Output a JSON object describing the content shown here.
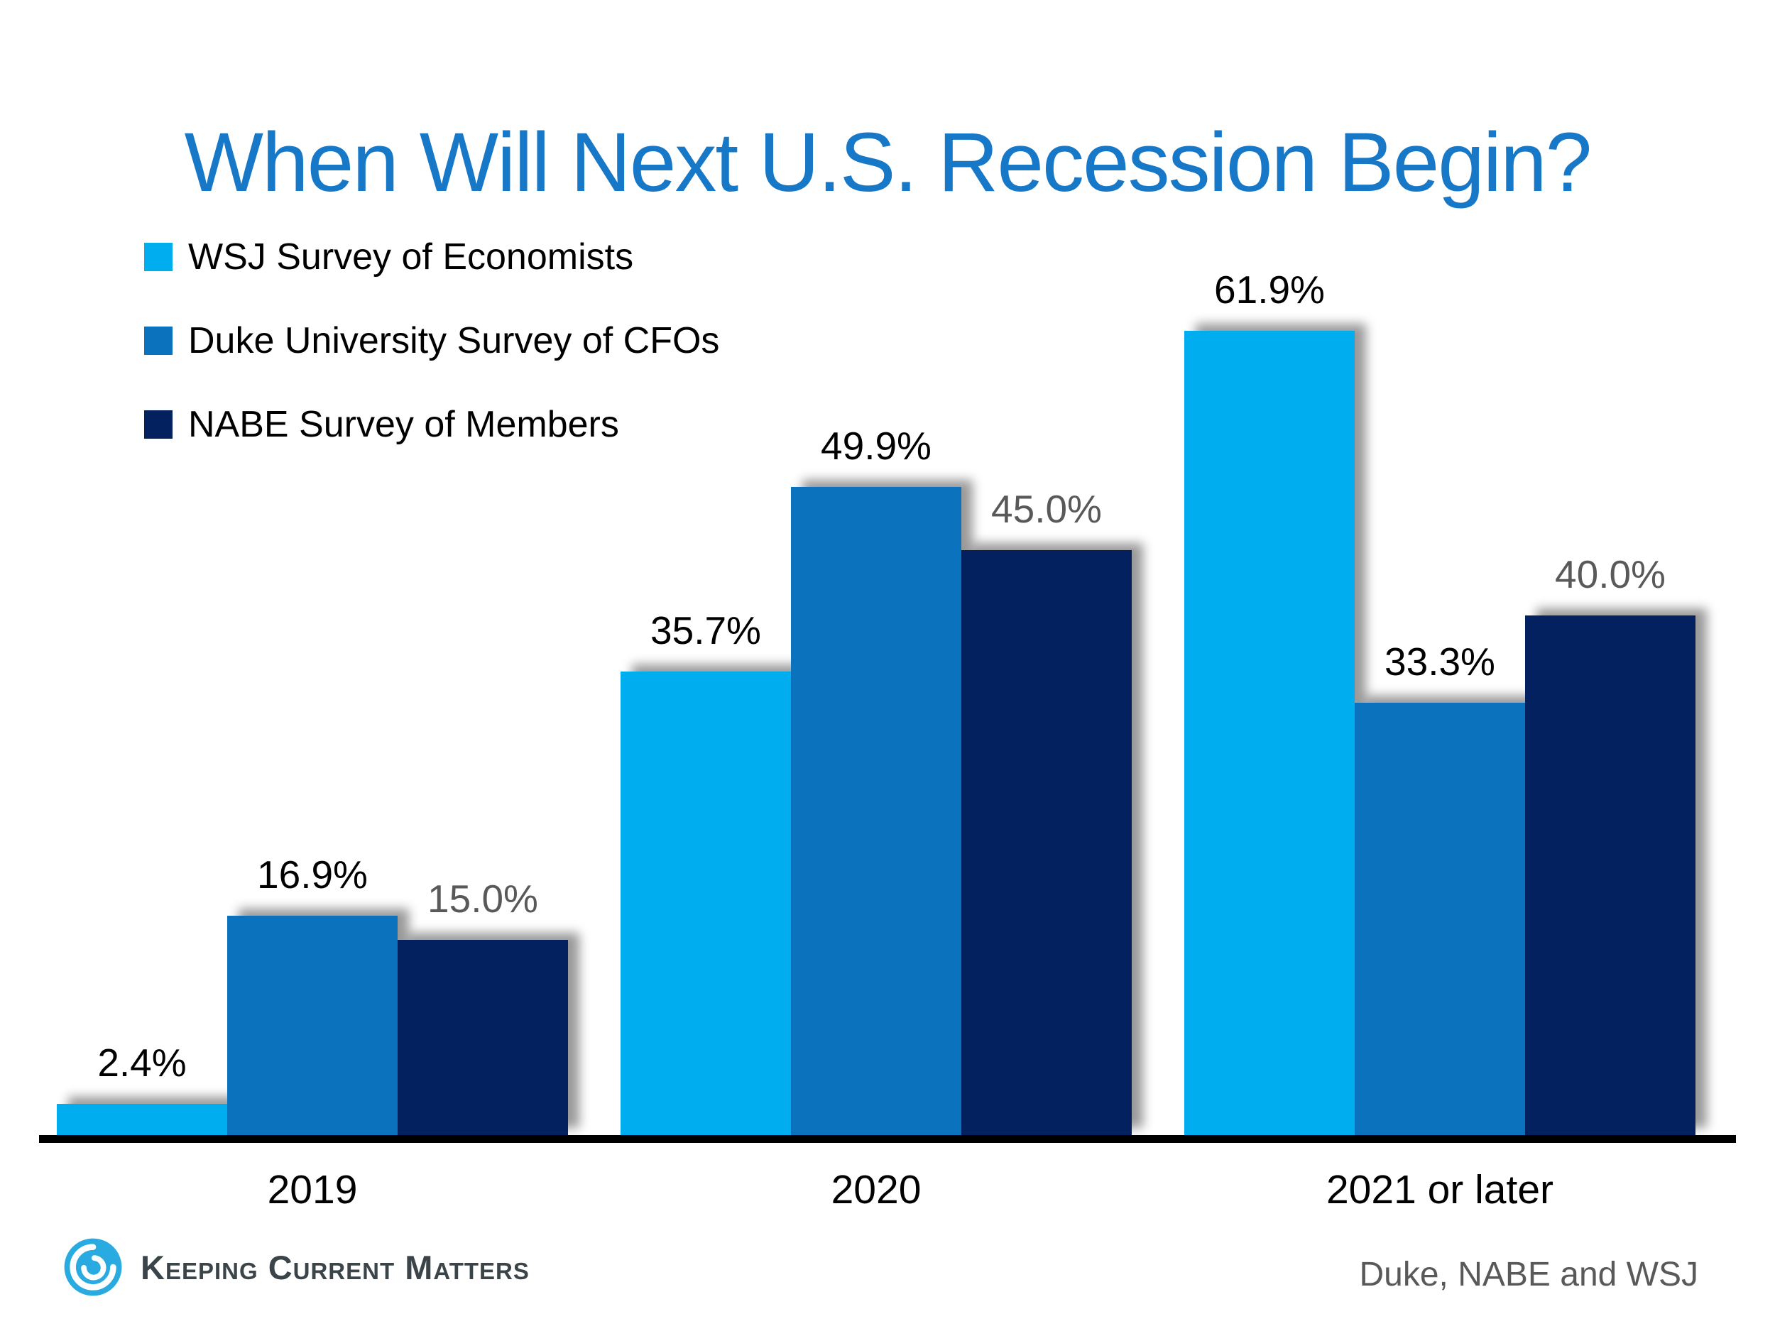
{
  "chart_data": {
    "type": "bar",
    "title": "When Will Next U.S. Recession Begin?",
    "title_color": "#1878C8",
    "categories": [
      "2019",
      "2020",
      "2021 or later"
    ],
    "series": [
      {
        "name": "WSJ Survey of Economists",
        "color": "#00AEEF",
        "label_color": "#000000",
        "values": [
          2.4,
          35.7,
          61.9
        ]
      },
      {
        "name": "Duke University Survey of CFOs",
        "color": "#0B73BD",
        "label_color": "#000000",
        "values": [
          16.9,
          49.9,
          33.3
        ]
      },
      {
        "name": "NABE Survey of Members",
        "color": "#02215E",
        "label_color": "#595959",
        "values": [
          15.0,
          45.0,
          40.0
        ]
      }
    ],
    "value_label_format": "percent-one-decimal",
    "ylim": [
      0,
      70
    ],
    "grid": "off",
    "legend_position": "top-left",
    "axis_line_color": "#000000"
  },
  "footer": {
    "logo_text": "Keeping Current Matters",
    "source_text": "Duke, NABE and WSJ"
  }
}
